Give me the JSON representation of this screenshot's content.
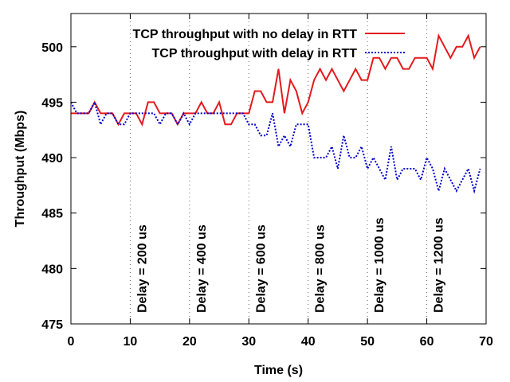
{
  "chart_data": {
    "type": "line",
    "xlabel": "Time (s)",
    "ylabel": "Throughput (Mbps)",
    "xlim": [
      0,
      70
    ],
    "ylim": [
      475,
      503
    ],
    "xticks": [
      0,
      10,
      20,
      30,
      40,
      50,
      60,
      70
    ],
    "yticks": [
      475,
      480,
      485,
      490,
      495,
      500
    ],
    "grid": false,
    "legend_position": "top-right",
    "series": [
      {
        "name": "TCP throughput with no delay in RTT",
        "color": "#e41a1c",
        "line_style": "solid",
        "x": [
          0,
          1,
          2,
          3,
          4,
          5,
          6,
          7,
          8,
          9,
          10,
          11,
          12,
          13,
          14,
          15,
          16,
          17,
          18,
          19,
          20,
          21,
          22,
          23,
          24,
          25,
          26,
          27,
          28,
          29,
          30,
          31,
          32,
          33,
          34,
          35,
          36,
          37,
          38,
          39,
          40,
          41,
          42,
          43,
          44,
          45,
          46,
          47,
          48,
          49,
          50,
          51,
          52,
          53,
          54,
          55,
          56,
          57,
          58,
          59,
          60,
          61,
          62,
          63,
          64,
          65,
          66,
          67,
          68,
          69
        ],
        "y": [
          494,
          494,
          494,
          494,
          495,
          494,
          494,
          494,
          493,
          494,
          494,
          494,
          493,
          495,
          495,
          494,
          494,
          494,
          493,
          494,
          494,
          494,
          495,
          494,
          494,
          495,
          493,
          493,
          494,
          494,
          494,
          496,
          496,
          495,
          495,
          498,
          494,
          497,
          496,
          494,
          495,
          497,
          498,
          497,
          498,
          497,
          496,
          497,
          498,
          497,
          497,
          499,
          499,
          498,
          499,
          499,
          498,
          498,
          499,
          499,
          499,
          498,
          501,
          500,
          499,
          500,
          500,
          501,
          499,
          500
        ]
      },
      {
        "name": "TCP throughput with delay in RTT",
        "color": "#0000cc",
        "line_style": "dotted",
        "x": [
          0,
          1,
          2,
          3,
          4,
          5,
          6,
          7,
          8,
          9,
          10,
          11,
          12,
          13,
          14,
          15,
          16,
          17,
          18,
          19,
          20,
          21,
          22,
          23,
          24,
          25,
          26,
          27,
          28,
          29,
          30,
          31,
          32,
          33,
          34,
          35,
          36,
          37,
          38,
          39,
          40,
          41,
          42,
          43,
          44,
          45,
          46,
          47,
          48,
          49,
          50,
          51,
          52,
          53,
          54,
          55,
          56,
          57,
          58,
          59,
          60,
          61,
          62,
          63,
          64,
          65,
          66,
          67,
          68,
          69
        ],
        "y": [
          495,
          494,
          494,
          494,
          495,
          493,
          494,
          494,
          493,
          493,
          494,
          494,
          494,
          494,
          494,
          493,
          494,
          494,
          493,
          494,
          493,
          494,
          494,
          494,
          494,
          494,
          494,
          494,
          494,
          494,
          493,
          493,
          492,
          492,
          494,
          491,
          492,
          491,
          493,
          493,
          493,
          490,
          490,
          490,
          491,
          489,
          492,
          490,
          490,
          491,
          489,
          490,
          489,
          488,
          491,
          488,
          489,
          489,
          489,
          488,
          490,
          489,
          487,
          489,
          488,
          487,
          488,
          489,
          487,
          489
        ]
      }
    ],
    "annotations": [
      {
        "text": "Delay = 200 us",
        "x": 10
      },
      {
        "text": "Delay = 400 us",
        "x": 20
      },
      {
        "text": "Delay = 600 us",
        "x": 30
      },
      {
        "text": "Delay = 800 us",
        "x": 40
      },
      {
        "text": "Delay = 1000 us",
        "x": 50
      },
      {
        "text": "Delay = 1200 us",
        "x": 60
      }
    ]
  }
}
